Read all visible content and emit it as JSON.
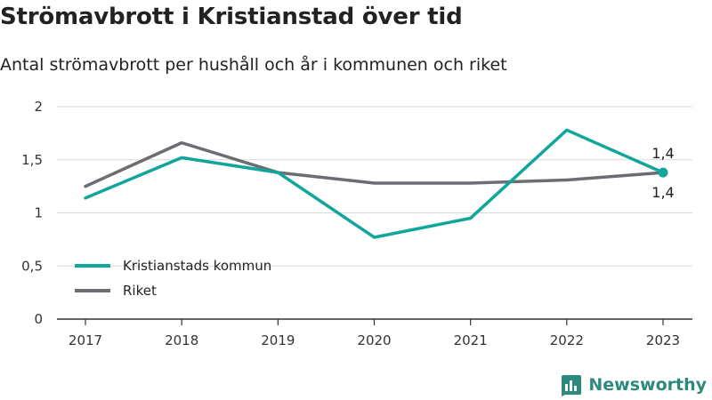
{
  "title": "Strömavbrott i Kristianstad över tid",
  "subtitle": "Antal strömavbrott per hushåll och år i kommunen och riket",
  "brand": "Newsworthy",
  "colors": {
    "kommun": "#10a69b",
    "riket": "#6d6c73",
    "grid": "#d9d9d9",
    "brand": "#2c8a7c"
  },
  "chart_data": {
    "type": "line",
    "title": "Strömavbrott i Kristianstad över tid",
    "subtitle": "Antal strömavbrott per hushåll och år i kommunen och riket",
    "categories": [
      "2017",
      "2018",
      "2019",
      "2020",
      "2021",
      "2022",
      "2023"
    ],
    "ylim": [
      0,
      2
    ],
    "yticks": [
      0,
      0.5,
      1,
      1.5,
      2
    ],
    "ytick_labels": [
      "0",
      "0,5",
      "1",
      "1,5",
      "2"
    ],
    "grid": true,
    "legend_position": "bottom-left",
    "series": [
      {
        "name": "Kristianstads kommun",
        "color": "#10a69b",
        "values": [
          1.14,
          1.52,
          1.38,
          0.77,
          0.95,
          1.78,
          1.38
        ]
      },
      {
        "name": "Riket",
        "color": "#6d6c73",
        "values": [
          1.25,
          1.66,
          1.38,
          1.28,
          1.28,
          1.31,
          1.38
        ]
      }
    ],
    "annotations": [
      {
        "series": "Kristianstads kommun",
        "category": "2023",
        "label": "1,4"
      },
      {
        "series": "Riket",
        "category": "2023",
        "label": "1,4"
      }
    ]
  }
}
